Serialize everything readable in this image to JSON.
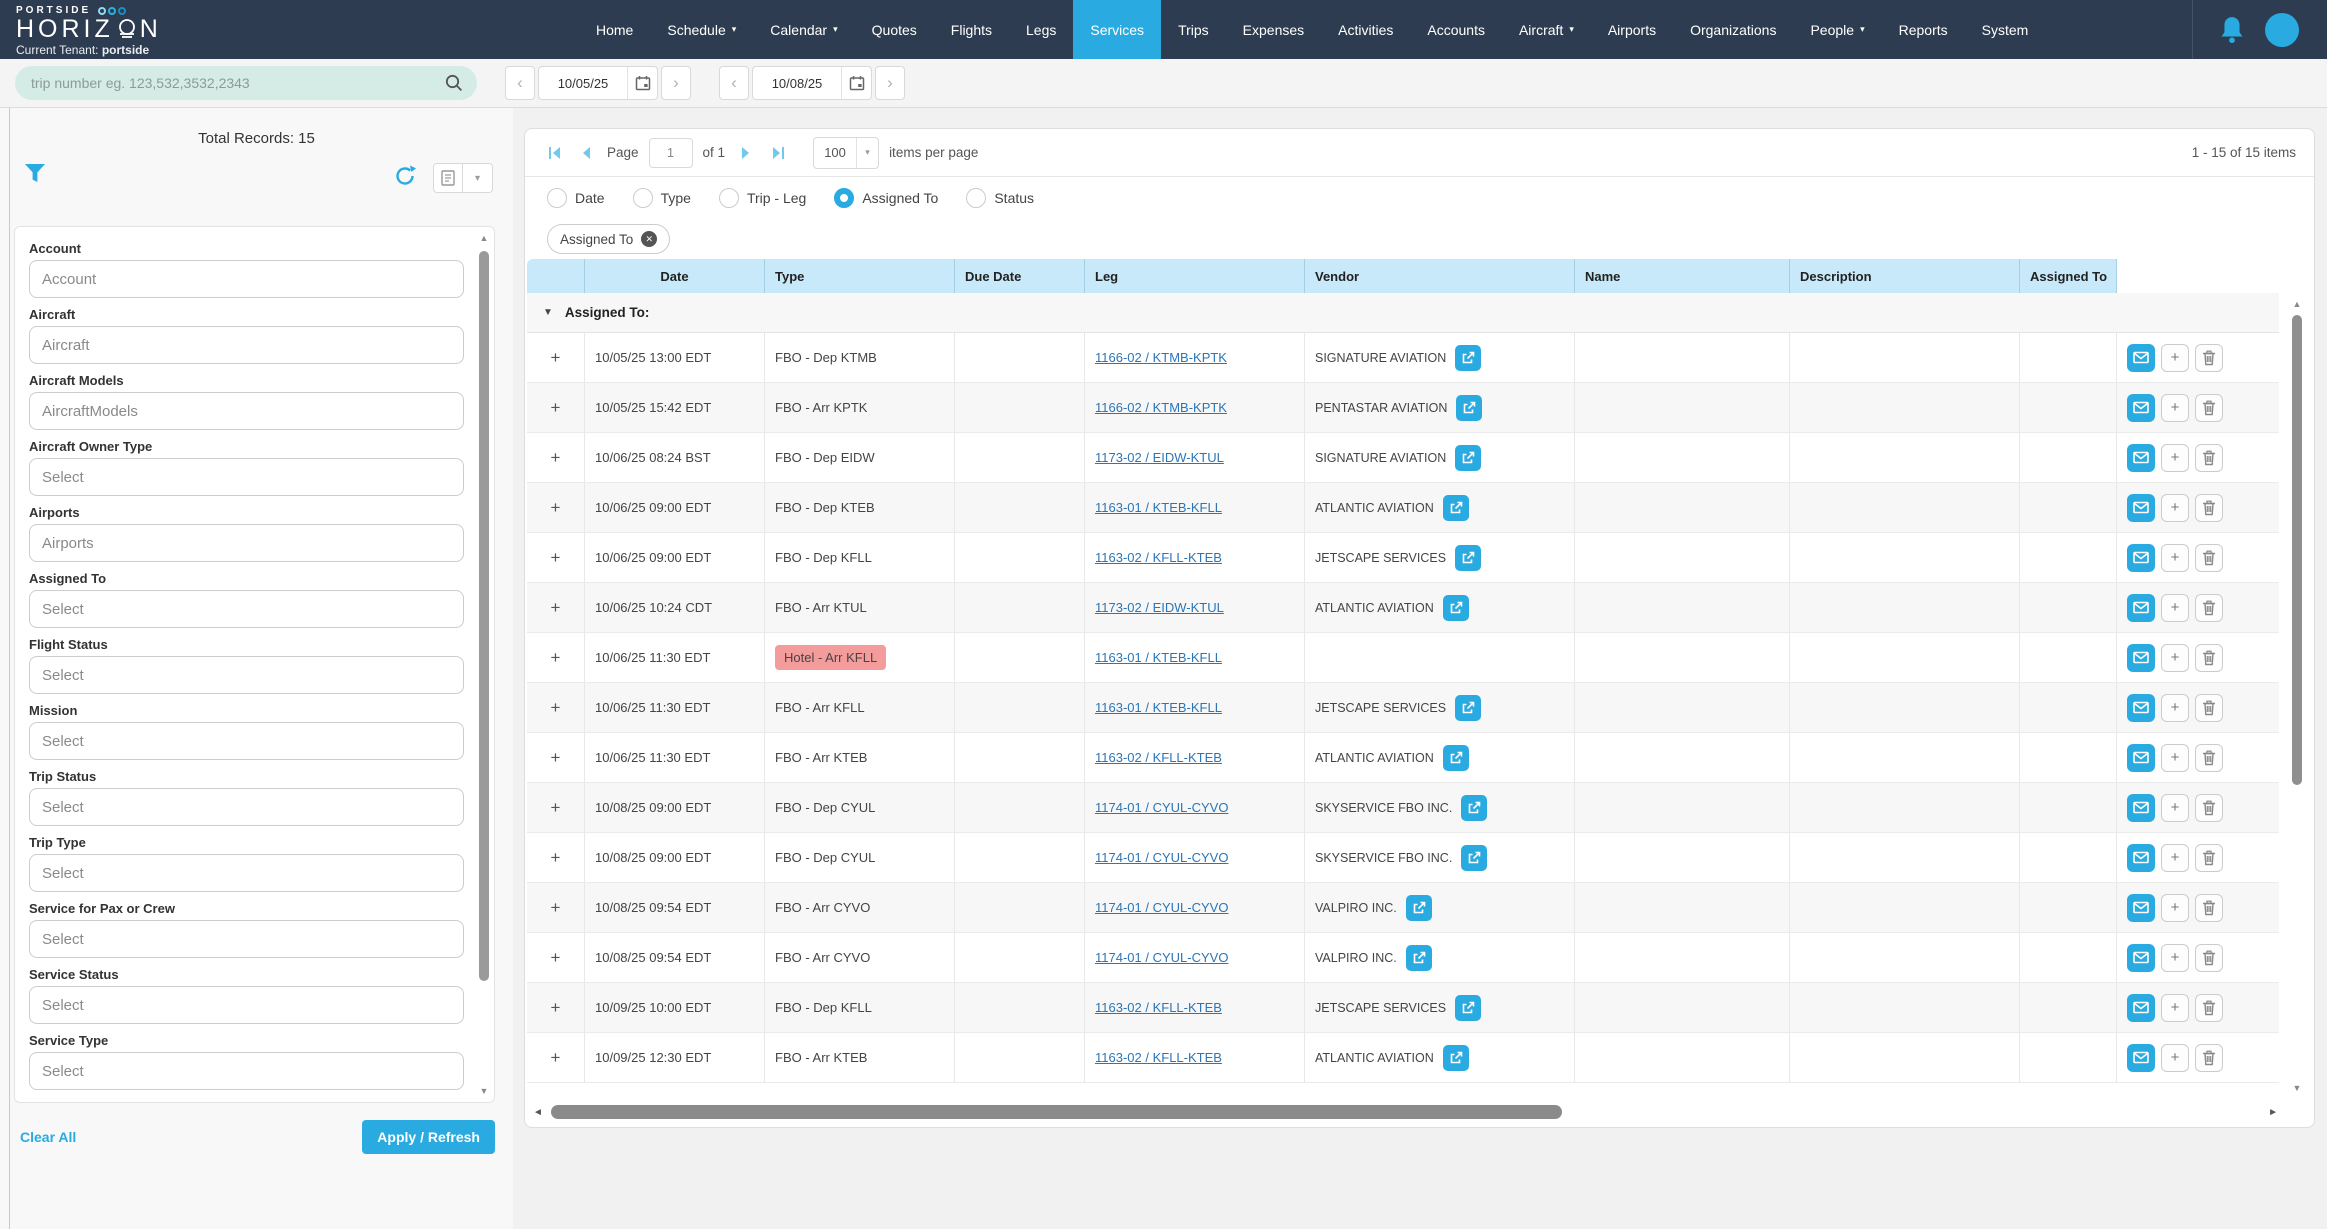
{
  "header": {
    "brand": {
      "line1": "PORTSIDE",
      "line2_left": "HORIZ",
      "line2_right": "N",
      "tenant_label": "Current Tenant:",
      "tenant_name": "portside"
    },
    "nav": [
      {
        "label": "Home"
      },
      {
        "label": "Schedule",
        "dropdown": true
      },
      {
        "label": "Calendar",
        "dropdown": true
      },
      {
        "label": "Quotes"
      },
      {
        "label": "Flights"
      },
      {
        "label": "Legs"
      },
      {
        "label": "Services",
        "active": true
      },
      {
        "label": "Trips"
      },
      {
        "label": "Expenses"
      },
      {
        "label": "Activities"
      },
      {
        "label": "Accounts"
      },
      {
        "label": "Aircraft",
        "dropdown": true
      },
      {
        "label": "Airports"
      },
      {
        "label": "Organizations"
      },
      {
        "label": "People",
        "dropdown": true
      },
      {
        "label": "Reports"
      },
      {
        "label": "System"
      }
    ]
  },
  "toolbar": {
    "search_placeholder": "trip number eg. 123,532,3532,2343",
    "date_from": "10/05/25",
    "date_to": "10/08/25"
  },
  "sidebar": {
    "total_records": "Total Records: 15",
    "filters": [
      {
        "label": "Account",
        "placeholder": "Account"
      },
      {
        "label": "Aircraft",
        "placeholder": "Aircraft"
      },
      {
        "label": "Aircraft Models",
        "placeholder": "AircraftModels"
      },
      {
        "label": "Aircraft Owner Type",
        "placeholder": "Select"
      },
      {
        "label": "Airports",
        "placeholder": "Airports"
      },
      {
        "label": "Assigned To",
        "placeholder": "Select"
      },
      {
        "label": "Flight Status",
        "placeholder": "Select"
      },
      {
        "label": "Mission",
        "placeholder": "Select"
      },
      {
        "label": "Trip Status",
        "placeholder": "Select"
      },
      {
        "label": "Trip Type",
        "placeholder": "Select"
      },
      {
        "label": "Service for Pax or Crew",
        "placeholder": "Select"
      },
      {
        "label": "Service Status",
        "placeholder": "Select"
      },
      {
        "label": "Service Type",
        "placeholder": "Select"
      }
    ],
    "clear_all": "Clear All",
    "apply": "Apply / Refresh"
  },
  "main": {
    "pager": {
      "page_label": "Page",
      "page_value": "1",
      "of_label": "of 1",
      "page_size": "100",
      "items_per_page": "items per page",
      "range": "1 - 15 of 15 items"
    },
    "group_radios": [
      {
        "label": "Date"
      },
      {
        "label": "Type"
      },
      {
        "label": "Trip - Leg"
      },
      {
        "label": "Assigned To",
        "selected": true
      },
      {
        "label": "Status"
      }
    ],
    "filter_chip": "Assigned To",
    "table": {
      "columns": [
        "",
        "Date",
        "Type",
        "Due Date",
        "Leg",
        "Vendor",
        "Name",
        "Description",
        "Assigned To",
        ""
      ],
      "group_row": "Assigned To:",
      "rows": [
        {
          "date": "10/05/25 13:00 EDT",
          "type": "FBO - Dep KTMB",
          "badge": false,
          "leg": "1166-02 / KTMB-KPTK",
          "vendor": "SIGNATURE AVIATION"
        },
        {
          "date": "10/05/25 15:42 EDT",
          "type": "FBO - Arr KPTK",
          "badge": false,
          "leg": "1166-02 / KTMB-KPTK",
          "vendor": "PENTASTAR AVIATION"
        },
        {
          "date": "10/06/25 08:24 BST",
          "type": "FBO - Dep EIDW",
          "badge": false,
          "leg": "1173-02 / EIDW-KTUL",
          "vendor": "SIGNATURE AVIATION"
        },
        {
          "date": "10/06/25 09:00 EDT",
          "type": "FBO - Dep KTEB",
          "badge": false,
          "leg": "1163-01 / KTEB-KFLL",
          "vendor": "ATLANTIC AVIATION"
        },
        {
          "date": "10/06/25 09:00 EDT",
          "type": "FBO - Dep KFLL",
          "badge": false,
          "leg": "1163-02 / KFLL-KTEB",
          "vendor": "JETSCAPE SERVICES"
        },
        {
          "date": "10/06/25 10:24 CDT",
          "type": "FBO - Arr KTUL",
          "badge": false,
          "leg": "1173-02 / EIDW-KTUL",
          "vendor": "ATLANTIC AVIATION"
        },
        {
          "date": "10/06/25 11:30 EDT",
          "type": "Hotel - Arr KFLL",
          "badge": true,
          "leg": "1163-01 / KTEB-KFLL",
          "vendor": ""
        },
        {
          "date": "10/06/25 11:30 EDT",
          "type": "FBO - Arr KFLL",
          "badge": false,
          "leg": "1163-01 / KTEB-KFLL",
          "vendor": "JETSCAPE SERVICES"
        },
        {
          "date": "10/06/25 11:30 EDT",
          "type": "FBO - Arr KTEB",
          "badge": false,
          "leg": "1163-02 / KFLL-KTEB",
          "vendor": "ATLANTIC AVIATION"
        },
        {
          "date": "10/08/25 09:00 EDT",
          "type": "FBO - Dep CYUL",
          "badge": false,
          "leg": "1174-01 / CYUL-CYVO",
          "vendor": "SKYSERVICE FBO INC."
        },
        {
          "date": "10/08/25 09:00 EDT",
          "type": "FBO - Dep CYUL",
          "badge": false,
          "leg": "1174-01 / CYUL-CYVO",
          "vendor": "SKYSERVICE FBO INC."
        },
        {
          "date": "10/08/25 09:54 EDT",
          "type": "FBO - Arr CYVO",
          "badge": false,
          "leg": "1174-01 / CYUL-CYVO",
          "vendor": "VALPIRO INC."
        },
        {
          "date": "10/08/25 09:54 EDT",
          "type": "FBO - Arr CYVO",
          "badge": false,
          "leg": "1174-01 / CYUL-CYVO",
          "vendor": "VALPIRO INC."
        },
        {
          "date": "10/09/25 10:00 EDT",
          "type": "FBO - Dep KFLL",
          "badge": false,
          "leg": "1163-02 / KFLL-KTEB",
          "vendor": "JETSCAPE SERVICES"
        },
        {
          "date": "10/09/25 12:30 EDT",
          "type": "FBO - Arr KTEB",
          "badge": false,
          "leg": "1163-02 / KFLL-KTEB",
          "vendor": "ATLANTIC AVIATION"
        }
      ]
    }
  },
  "glyphs": {
    "caret": "▾",
    "group_caret": "▼",
    "chevron_left": "‹",
    "chevron_right": "›",
    "plus": "+",
    "up": "▲",
    "down": "▼",
    "close": "✕",
    "left": "◄",
    "right": "►"
  },
  "colors": {
    "accent": "#29abe2",
    "nav_bg": "#2d3c50",
    "table_header_bg": "#c8e9f9",
    "badge_bg": "#f49b9b",
    "link": "#2a76b8"
  }
}
